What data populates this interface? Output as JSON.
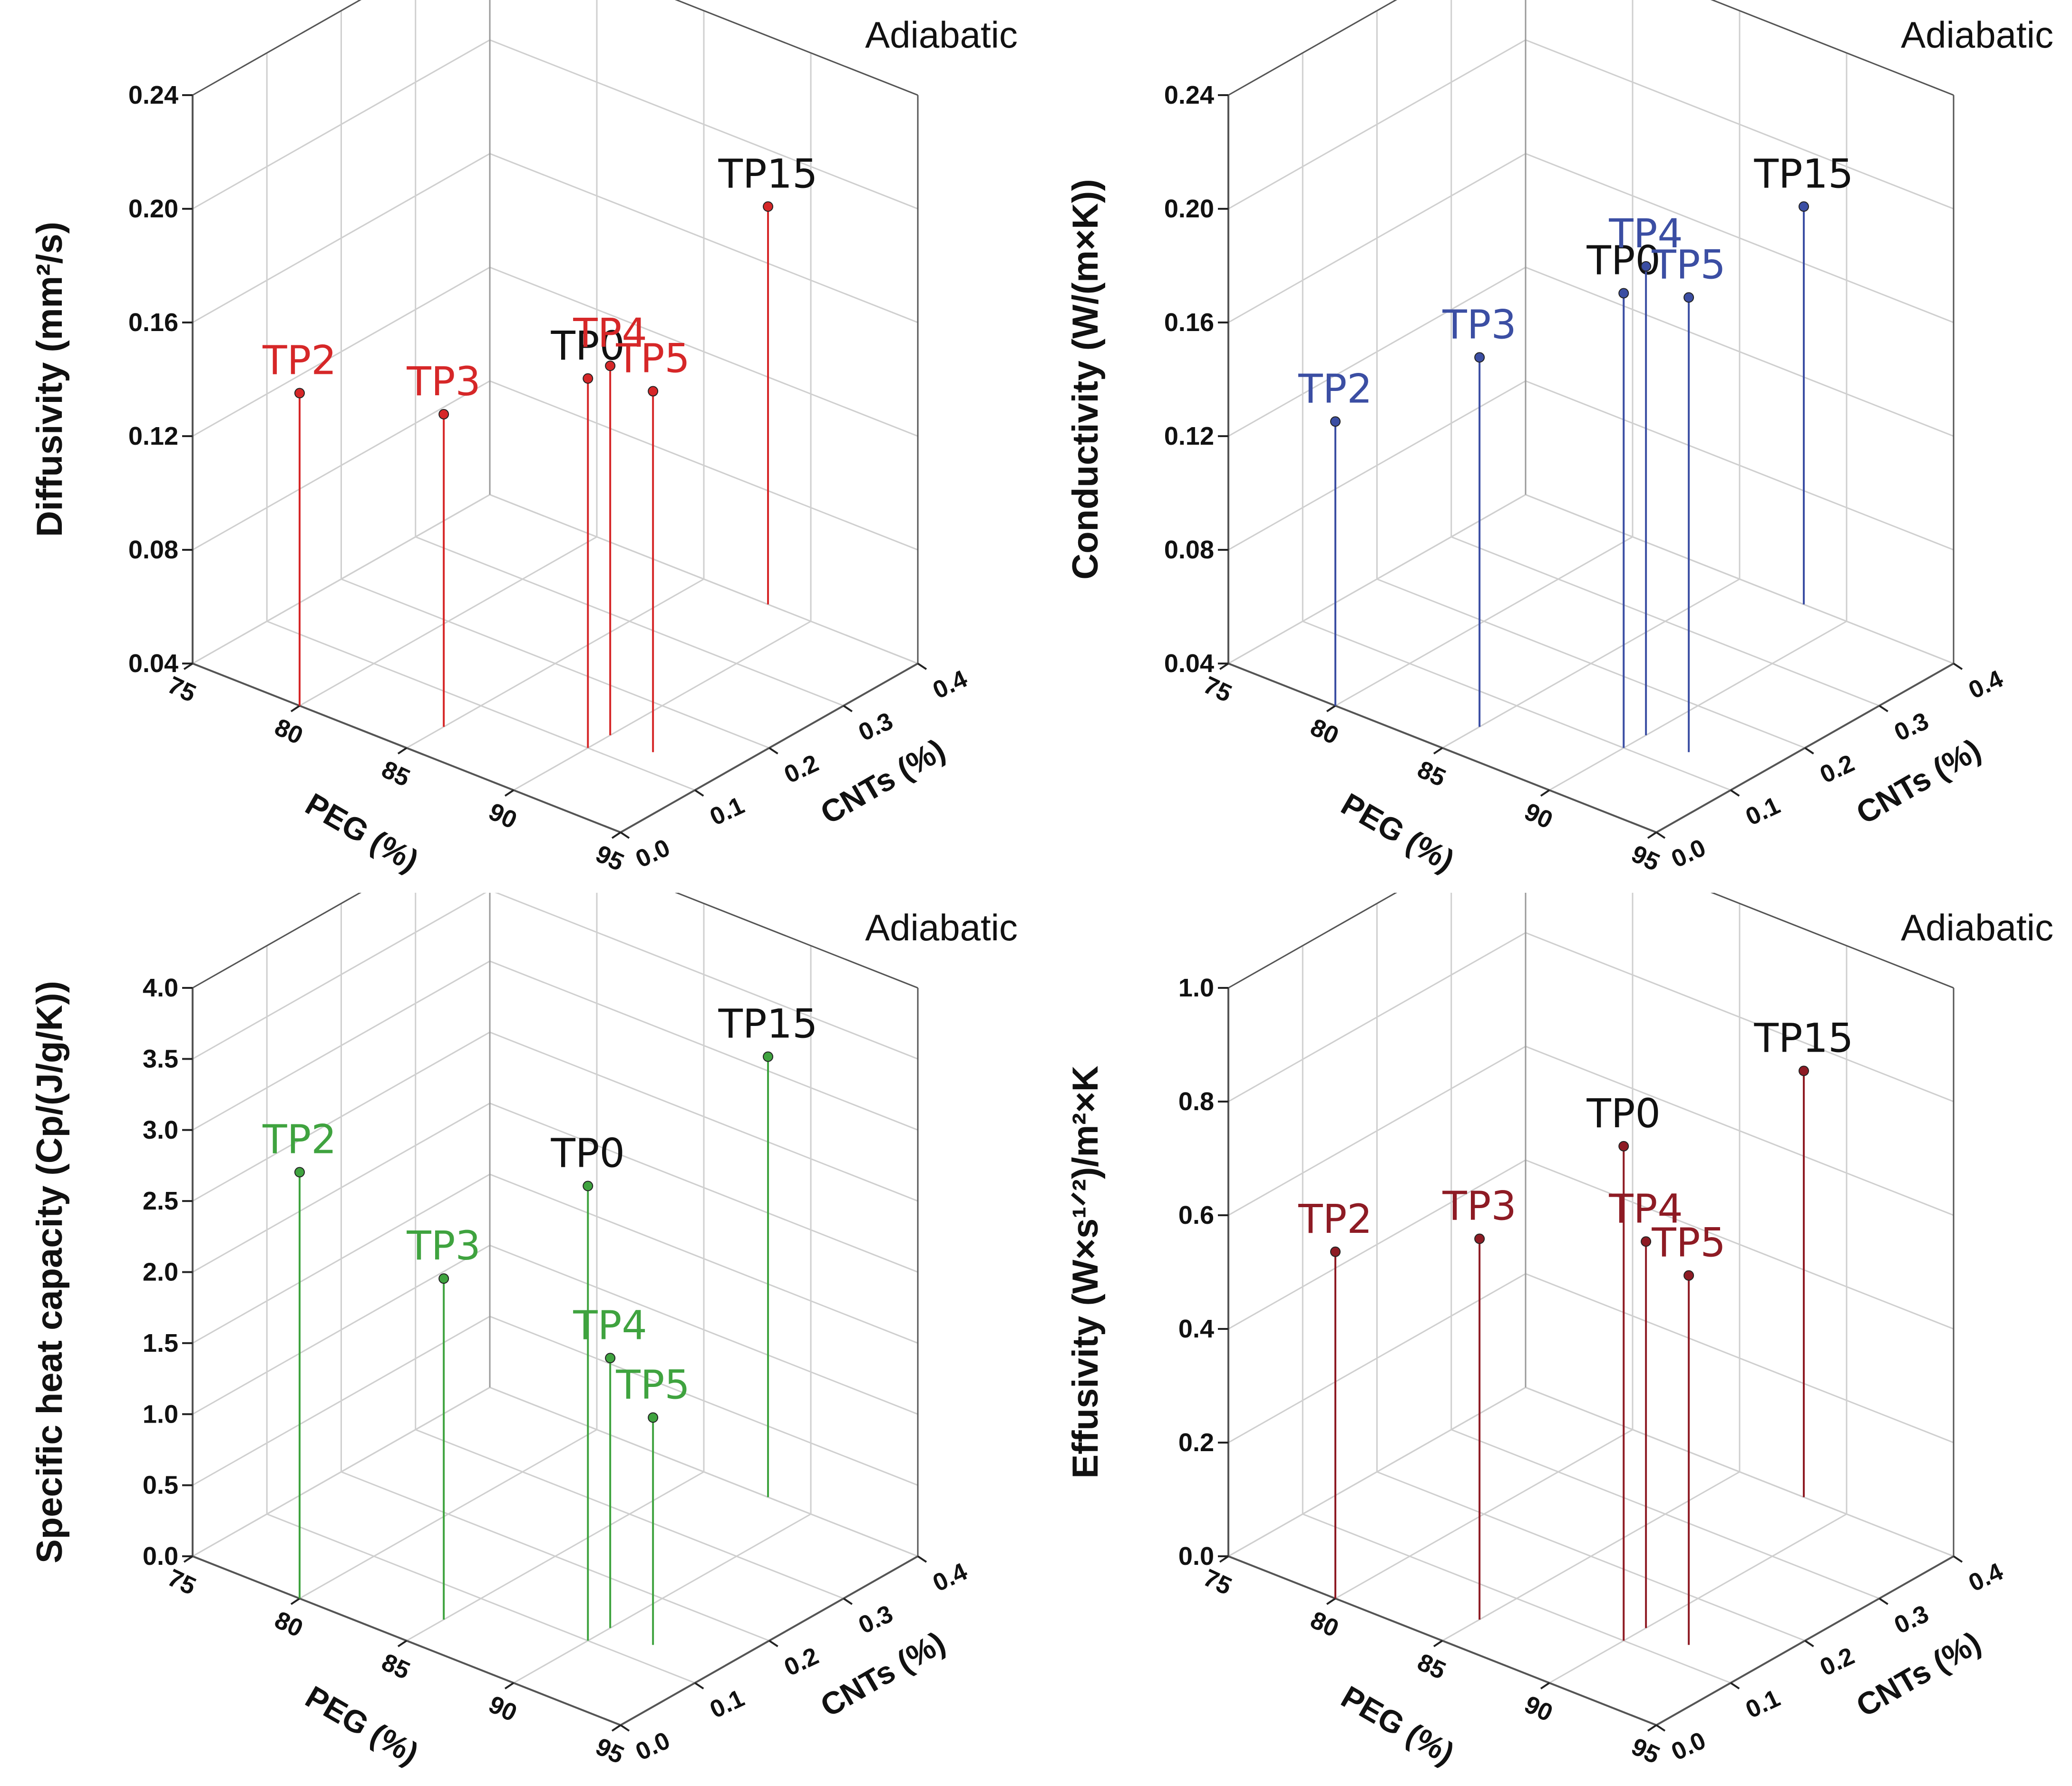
{
  "figure": {
    "panels": 4
  },
  "chart_data": [
    {
      "type": "scatter",
      "style": "3d-stem",
      "annotation": "Adiabatic",
      "xlabel": "PEG (%)",
      "ylabel": "CNTs (%)",
      "zlabel": "Diffusivity (mm²/s)",
      "x_ticks": [
        "75",
        "80",
        "85",
        "90",
        "95"
      ],
      "y_ticks": [
        "0.0",
        "0.1",
        "0.2",
        "0.3",
        "0.4"
      ],
      "z_ticks": [
        "0.04",
        "0.08",
        "0.12",
        "0.16",
        "0.20",
        "0.24"
      ],
      "xlim": [
        75,
        95
      ],
      "ylim": [
        0,
        0.4
      ],
      "zlim": [
        0.04,
        0.24
      ],
      "series_color": "#d62728",
      "points": [
        {
          "label": "TP2",
          "peg": 80,
          "cnts": 0.0,
          "value": 0.15,
          "label_color": "#d62728"
        },
        {
          "label": "TP3",
          "peg": 85,
          "cnts": 0.05,
          "value": 0.15,
          "label_color": "#d62728"
        },
        {
          "label": "TP0",
          "peg": 90,
          "cnts": 0.1,
          "value": 0.17,
          "label_color": "#111111"
        },
        {
          "label": "TP4",
          "peg": 90,
          "cnts": 0.13,
          "value": 0.17,
          "label_color": "#d62728"
        },
        {
          "label": "TP5",
          "peg": 92,
          "cnts": 0.13,
          "value": 0.167,
          "label_color": "#d62728"
        },
        {
          "label": "TP15",
          "peg": 88,
          "cnts": 0.4,
          "value": 0.18,
          "label_color": "#111111"
        }
      ]
    },
    {
      "type": "scatter",
      "style": "3d-stem",
      "annotation": "Adiabatic",
      "xlabel": "PEG (%)",
      "ylabel": "CNTs (%)",
      "zlabel": "Conductivity (W/(m×K))",
      "x_ticks": [
        "75",
        "80",
        "85",
        "90",
        "95"
      ],
      "y_ticks": [
        "0.0",
        "0.1",
        "0.2",
        "0.3",
        "0.4"
      ],
      "z_ticks": [
        "0.04",
        "0.08",
        "0.12",
        "0.16",
        "0.20",
        "0.24"
      ],
      "xlim": [
        75,
        95
      ],
      "ylim": [
        0,
        0.4
      ],
      "zlim": [
        0.04,
        0.24
      ],
      "series_color": "#3b4ea3",
      "points": [
        {
          "label": "TP2",
          "peg": 80,
          "cnts": 0.0,
          "value": 0.14,
          "label_color": "#3b4ea3"
        },
        {
          "label": "TP3",
          "peg": 85,
          "cnts": 0.05,
          "value": 0.17,
          "label_color": "#3b4ea3"
        },
        {
          "label": "TP0",
          "peg": 90,
          "cnts": 0.1,
          "value": 0.2,
          "label_color": "#111111"
        },
        {
          "label": "TP4",
          "peg": 90,
          "cnts": 0.13,
          "value": 0.205,
          "label_color": "#3b4ea3"
        },
        {
          "label": "TP5",
          "peg": 92,
          "cnts": 0.13,
          "value": 0.2,
          "label_color": "#3b4ea3"
        },
        {
          "label": "TP15",
          "peg": 88,
          "cnts": 0.4,
          "value": 0.18,
          "label_color": "#111111"
        }
      ]
    },
    {
      "type": "scatter",
      "style": "3d-stem",
      "annotation": "Adiabatic",
      "xlabel": "PEG (%)",
      "ylabel": "CNTs (%)",
      "zlabel": "Specific heat capacity (Cp/(J/g/K))",
      "x_ticks": [
        "75",
        "80",
        "85",
        "90",
        "95"
      ],
      "y_ticks": [
        "0.0",
        "0.1",
        "0.2",
        "0.3",
        "0.4"
      ],
      "z_ticks": [
        "0.0",
        "0.5",
        "1.0",
        "1.5",
        "2.0",
        "2.5",
        "3.0",
        "3.5",
        "4.0"
      ],
      "xlim": [
        75,
        95
      ],
      "ylim": [
        0,
        0.4
      ],
      "zlim": [
        0,
        4
      ],
      "series_color": "#3fa33f",
      "points": [
        {
          "label": "TP2",
          "peg": 80,
          "cnts": 0.0,
          "value": 3.0,
          "label_color": "#3fa33f"
        },
        {
          "label": "TP3",
          "peg": 85,
          "cnts": 0.05,
          "value": 2.4,
          "label_color": "#3fa33f"
        },
        {
          "label": "TP0",
          "peg": 90,
          "cnts": 0.1,
          "value": 3.2,
          "label_color": "#111111"
        },
        {
          "label": "TP4",
          "peg": 90,
          "cnts": 0.13,
          "value": 1.9,
          "label_color": "#3fa33f"
        },
        {
          "label": "TP5",
          "peg": 92,
          "cnts": 0.13,
          "value": 1.6,
          "label_color": "#3fa33f"
        },
        {
          "label": "TP15",
          "peg": 88,
          "cnts": 0.4,
          "value": 3.1,
          "label_color": "#111111"
        }
      ]
    },
    {
      "type": "scatter",
      "style": "3d-stem",
      "annotation": "Adiabatic",
      "xlabel": "PEG (%)",
      "ylabel": "CNTs (%)",
      "zlabel": "Effusivity (W×s¹ᐟ²)/m²×K",
      "x_ticks": [
        "75",
        "80",
        "85",
        "90",
        "95"
      ],
      "y_ticks": [
        "0.0",
        "0.1",
        "0.2",
        "0.3",
        "0.4"
      ],
      "z_ticks": [
        "0.0",
        "0.2",
        "0.4",
        "0.6",
        "0.8",
        "1.0"
      ],
      "xlim": [
        75,
        95
      ],
      "ylim": [
        0,
        0.4
      ],
      "zlim": [
        0,
        1
      ],
      "series_color": "#8e1b24",
      "points": [
        {
          "label": "TP2",
          "peg": 80,
          "cnts": 0.0,
          "value": 0.61,
          "label_color": "#8e1b24"
        },
        {
          "label": "TP3",
          "peg": 85,
          "cnts": 0.05,
          "value": 0.67,
          "label_color": "#8e1b24"
        },
        {
          "label": "TP0",
          "peg": 90,
          "cnts": 0.1,
          "value": 0.87,
          "label_color": "#111111"
        },
        {
          "label": "TP4",
          "peg": 90,
          "cnts": 0.13,
          "value": 0.68,
          "label_color": "#8e1b24"
        },
        {
          "label": "TP5",
          "peg": 92,
          "cnts": 0.13,
          "value": 0.65,
          "label_color": "#8e1b24"
        },
        {
          "label": "TP15",
          "peg": 88,
          "cnts": 0.4,
          "value": 0.75,
          "label_color": "#111111"
        }
      ]
    }
  ]
}
